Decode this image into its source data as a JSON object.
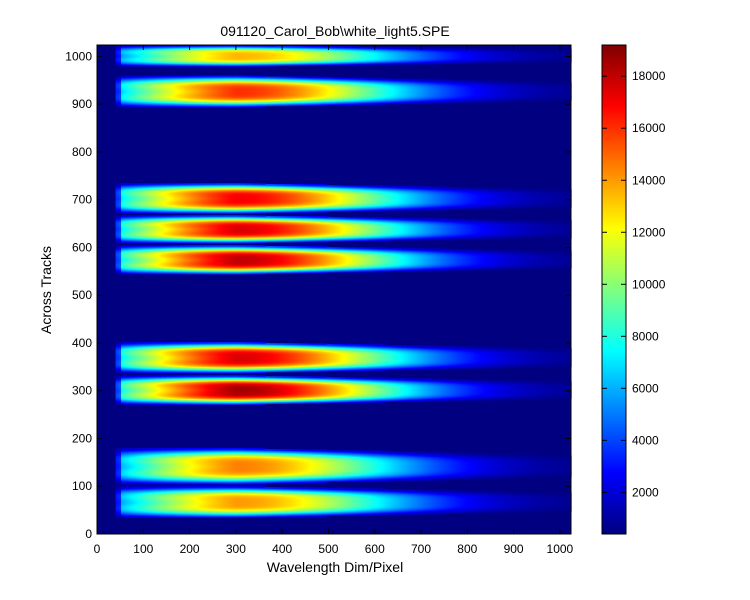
{
  "chart_data": {
    "type": "heatmap",
    "title": "091120_Carol_Bob\\white_light5.SPE",
    "xlabel": "Wavelength Dim/Pixel",
    "ylabel": "Across Tracks",
    "xlim": [
      0,
      1024
    ],
    "ylim": [
      0,
      1024
    ],
    "x_ticks": [
      0,
      100,
      200,
      300,
      400,
      500,
      600,
      700,
      800,
      900,
      1000
    ],
    "y_ticks": [
      0,
      100,
      200,
      300,
      400,
      500,
      600,
      700,
      800,
      900,
      1000
    ],
    "colormap": "jet",
    "colorbar": {
      "range": [
        400,
        19200
      ],
      "ticks": [
        2000,
        4000,
        6000,
        8000,
        10000,
        12000,
        14000,
        16000,
        18000
      ]
    },
    "background_value": 400,
    "signal_start_x": 40,
    "spectrum_peak_x": 300,
    "tracks": [
      {
        "y_range": [
          35,
          100
        ],
        "peak": 14000
      },
      {
        "y_range": [
          105,
          180
        ],
        "peak": 14500
      },
      {
        "y_range": [
          272,
          332
        ],
        "peak": 18500
      },
      {
        "y_range": [
          338,
          402
        ],
        "peak": 17500
      },
      {
        "y_range": [
          545,
          605
        ],
        "peak": 18000
      },
      {
        "y_range": [
          610,
          668
        ],
        "peak": 17500
      },
      {
        "y_range": [
          672,
          735
        ],
        "peak": 17000
      },
      {
        "y_range": [
          895,
          960
        ],
        "peak": 16000
      },
      {
        "y_range": [
          980,
          1024
        ],
        "peak": 13500
      }
    ],
    "grid": false,
    "colors": {
      "background": "#000080",
      "axis": "#000000"
    }
  }
}
